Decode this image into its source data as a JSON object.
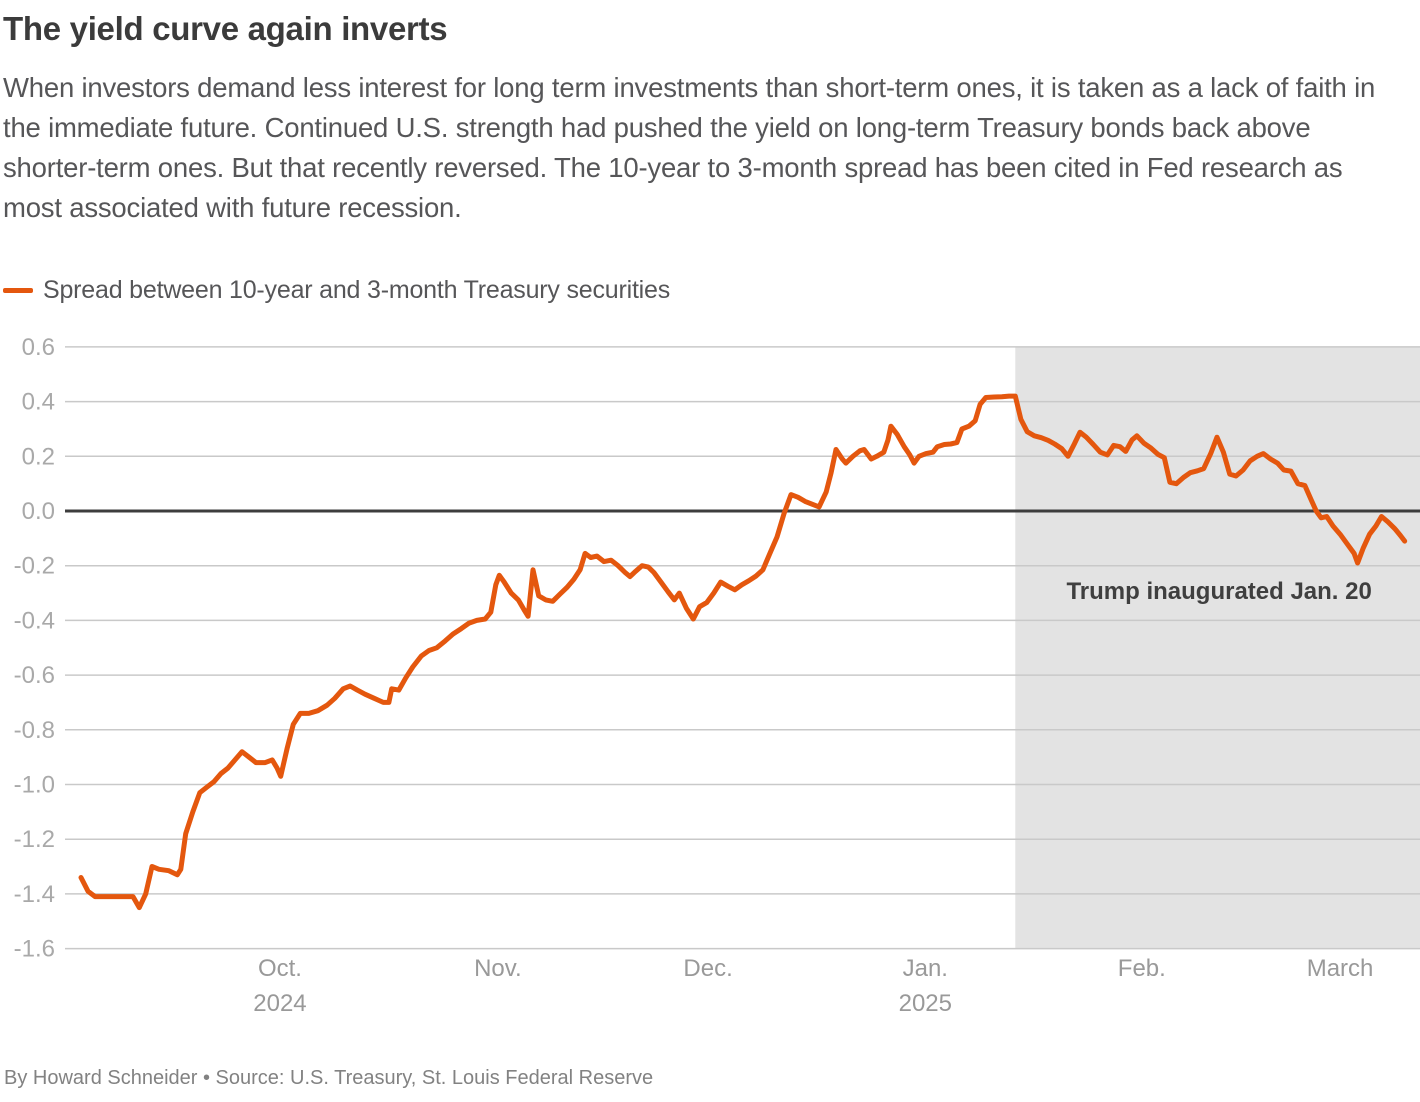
{
  "header": {
    "title": "The yield curve again inverts",
    "description": "When investors demand less interest for long term investments than short-term ones, it is taken as a lack of faith in the immediate future. Continued U.S. strength had pushed the yield on long-term Treasury bonds back above shorter-term ones. But that recently reversed. The 10-year to 3-month spread has been cited in Fed research as most associated with future recession."
  },
  "legend": {
    "label": "Spread between 10-year and 3-month Treasury securities",
    "swatch_color": "#e4570e"
  },
  "chart_data": {
    "type": "line",
    "title": "The yield curve again inverts",
    "x_axis": {
      "unit": "calendar days from chart start (~mid-Sept 2024), estimated from pixel positions",
      "ticks": [
        {
          "label": "Oct.",
          "sublabel": "2024",
          "day": 28.3
        },
        {
          "label": "Nov.",
          "sublabel": "",
          "day": 59.3
        },
        {
          "label": "Dec.",
          "sublabel": "",
          "day": 89.2
        },
        {
          "label": "Jan.",
          "sublabel": "2025",
          "day": 120.1
        },
        {
          "label": "Feb.",
          "sublabel": "",
          "day": 150.9
        },
        {
          "label": "March",
          "sublabel": "",
          "day": 179.1
        }
      ]
    },
    "y_axis": {
      "tick_labels": [
        "0.6",
        "0.4",
        "0.2",
        "0.0",
        "-0.2",
        "-0.4",
        "-0.6",
        "-0.8",
        "-1.0",
        "-1.2",
        "-1.4",
        "-1.6"
      ],
      "zero_line_emphasized": true,
      "gridline_color": "#c9c9c9",
      "zero_line_color": "#3d3d3d",
      "tick_label_color": "#a9a9a9"
    },
    "ylim": [
      -1.6,
      0.6
    ],
    "shaded_region": {
      "start_day": 132.9,
      "label": "Trump inaugurated Jan. 20",
      "color": "#e3e3e3",
      "label_color": "#3f3f3f"
    },
    "series": [
      {
        "name": "Spread between 10-year and 3-month Treasury securities",
        "color": "#e4570e",
        "points": [
          [
            0,
            -1.34
          ],
          [
            1,
            -1.39
          ],
          [
            2,
            -1.41
          ],
          [
            3,
            -1.41
          ],
          [
            4.6,
            -1.41
          ],
          [
            6,
            -1.41
          ],
          [
            7.4,
            -1.41
          ],
          [
            8.3,
            -1.45
          ],
          [
            9.2,
            -1.4
          ],
          [
            10.1,
            -1.3
          ],
          [
            11.1,
            -1.31
          ],
          [
            12.5,
            -1.315
          ],
          [
            13.7,
            -1.33
          ],
          [
            14.2,
            -1.31
          ],
          [
            14.9,
            -1.18
          ],
          [
            15.9,
            -1.1
          ],
          [
            16.9,
            -1.03
          ],
          [
            17.9,
            -1.01
          ],
          [
            18.9,
            -0.99
          ],
          [
            19.9,
            -0.96
          ],
          [
            20.9,
            -0.94
          ],
          [
            21.9,
            -0.91
          ],
          [
            22.9,
            -0.88
          ],
          [
            23.9,
            -0.9
          ],
          [
            24.9,
            -0.92
          ],
          [
            26.2,
            -0.92
          ],
          [
            27.2,
            -0.91
          ],
          [
            27.9,
            -0.94
          ],
          [
            28.4,
            -0.97
          ],
          [
            29.3,
            -0.87
          ],
          [
            30.2,
            -0.78
          ],
          [
            31.2,
            -0.74
          ],
          [
            32.4,
            -0.74
          ],
          [
            33.7,
            -0.73
          ],
          [
            35,
            -0.71
          ],
          [
            36.1,
            -0.685
          ],
          [
            37.3,
            -0.65
          ],
          [
            38.3,
            -0.64
          ],
          [
            39.3,
            -0.655
          ],
          [
            40.4,
            -0.67
          ],
          [
            41.7,
            -0.685
          ],
          [
            43,
            -0.7
          ],
          [
            43.8,
            -0.7
          ],
          [
            44.2,
            -0.65
          ],
          [
            45.2,
            -0.655
          ],
          [
            46.2,
            -0.61
          ],
          [
            47.2,
            -0.57
          ],
          [
            48.4,
            -0.53
          ],
          [
            49.5,
            -0.51
          ],
          [
            50.6,
            -0.5
          ],
          [
            51.8,
            -0.475
          ],
          [
            52.9,
            -0.45
          ],
          [
            54.1,
            -0.43
          ],
          [
            55.2,
            -0.41
          ],
          [
            56.3,
            -0.4
          ],
          [
            57.5,
            -0.395
          ],
          [
            58.3,
            -0.37
          ],
          [
            59,
            -0.27
          ],
          [
            59.5,
            -0.235
          ],
          [
            60.2,
            -0.26
          ],
          [
            61.2,
            -0.3
          ],
          [
            62.2,
            -0.325
          ],
          [
            63,
            -0.36
          ],
          [
            63.6,
            -0.385
          ],
          [
            64.3,
            -0.215
          ],
          [
            65.1,
            -0.31
          ],
          [
            66.1,
            -0.325
          ],
          [
            67.1,
            -0.33
          ],
          [
            68.1,
            -0.305
          ],
          [
            69.1,
            -0.28
          ],
          [
            70.1,
            -0.25
          ],
          [
            71,
            -0.215
          ],
          [
            71.7,
            -0.155
          ],
          [
            72.5,
            -0.17
          ],
          [
            73.4,
            -0.165
          ],
          [
            74.4,
            -0.185
          ],
          [
            75.4,
            -0.18
          ],
          [
            76.4,
            -0.2
          ],
          [
            77.4,
            -0.225
          ],
          [
            78.1,
            -0.24
          ],
          [
            78.9,
            -0.22
          ],
          [
            79.8,
            -0.2
          ],
          [
            80.7,
            -0.205
          ],
          [
            81.5,
            -0.225
          ],
          [
            82.5,
            -0.26
          ],
          [
            83.5,
            -0.295
          ],
          [
            84.4,
            -0.325
          ],
          [
            85.1,
            -0.3
          ],
          [
            86.1,
            -0.355
          ],
          [
            87.1,
            -0.395
          ],
          [
            88,
            -0.35
          ],
          [
            89,
            -0.335
          ],
          [
            90,
            -0.3
          ],
          [
            91,
            -0.26
          ],
          [
            92,
            -0.275
          ],
          [
            93,
            -0.288
          ],
          [
            94,
            -0.27
          ],
          [
            95,
            -0.255
          ],
          [
            96,
            -0.238
          ],
          [
            97,
            -0.215
          ],
          [
            98,
            -0.155
          ],
          [
            99,
            -0.095
          ],
          [
            100,
            -0.01
          ],
          [
            101,
            0.06
          ],
          [
            102,
            0.05
          ],
          [
            103,
            0.035
          ],
          [
            104,
            0.025
          ],
          [
            105,
            0.015
          ],
          [
            106,
            0.07
          ],
          [
            106.7,
            0.14
          ],
          [
            107.4,
            0.225
          ],
          [
            108.3,
            0.19
          ],
          [
            108.8,
            0.175
          ],
          [
            109.8,
            0.2
          ],
          [
            110.8,
            0.22
          ],
          [
            111.4,
            0.225
          ],
          [
            112.4,
            0.19
          ],
          [
            113.2,
            0.2
          ],
          [
            114.2,
            0.215
          ],
          [
            114.8,
            0.26
          ],
          [
            115.2,
            0.31
          ],
          [
            116.1,
            0.28
          ],
          [
            117.1,
            0.235
          ],
          [
            117.9,
            0.205
          ],
          [
            118.5,
            0.175
          ],
          [
            119.2,
            0.2
          ],
          [
            120.2,
            0.21
          ],
          [
            121.2,
            0.215
          ],
          [
            121.8,
            0.235
          ],
          [
            122.8,
            0.243
          ],
          [
            123.7,
            0.245
          ],
          [
            124.6,
            0.25
          ],
          [
            125.3,
            0.3
          ],
          [
            126.3,
            0.31
          ],
          [
            127.2,
            0.33
          ],
          [
            127.9,
            0.39
          ],
          [
            128.7,
            0.415
          ],
          [
            129.9,
            0.417
          ],
          [
            131,
            0.418
          ],
          [
            132,
            0.42
          ],
          [
            132.9,
            0.42
          ],
          [
            133.7,
            0.335
          ],
          [
            134.6,
            0.29
          ],
          [
            135.6,
            0.275
          ],
          [
            136.6,
            0.268
          ],
          [
            137.6,
            0.258
          ],
          [
            138.5,
            0.245
          ],
          [
            139.5,
            0.228
          ],
          [
            140.4,
            0.2
          ],
          [
            141.3,
            0.245
          ],
          [
            142.1,
            0.288
          ],
          [
            143,
            0.27
          ],
          [
            144,
            0.243
          ],
          [
            145,
            0.215
          ],
          [
            146,
            0.205
          ],
          [
            146.9,
            0.24
          ],
          [
            147.8,
            0.235
          ],
          [
            148.6,
            0.218
          ],
          [
            149.5,
            0.26
          ],
          [
            150.2,
            0.275
          ],
          [
            151.2,
            0.248
          ],
          [
            152.2,
            0.23
          ],
          [
            153.2,
            0.207
          ],
          [
            154.1,
            0.195
          ],
          [
            154.9,
            0.105
          ],
          [
            155.8,
            0.1
          ],
          [
            156.8,
            0.122
          ],
          [
            157.8,
            0.14
          ],
          [
            158.8,
            0.147
          ],
          [
            159.7,
            0.155
          ],
          [
            160.7,
            0.21
          ],
          [
            161.6,
            0.27
          ],
          [
            162.5,
            0.215
          ],
          [
            163.4,
            0.135
          ],
          [
            164.3,
            0.128
          ],
          [
            165.3,
            0.15
          ],
          [
            166.3,
            0.183
          ],
          [
            167.3,
            0.2
          ],
          [
            168.2,
            0.21
          ],
          [
            169.2,
            0.19
          ],
          [
            170.2,
            0.175
          ],
          [
            171.1,
            0.15
          ],
          [
            172.1,
            0.146
          ],
          [
            173.1,
            0.1
          ],
          [
            174.1,
            0.093
          ],
          [
            175,
            0.04
          ],
          [
            175.7,
            0
          ],
          [
            176.4,
            -0.025
          ],
          [
            177.2,
            -0.02
          ],
          [
            178.1,
            -0.055
          ],
          [
            179.1,
            -0.085
          ],
          [
            180.1,
            -0.12
          ],
          [
            181.1,
            -0.155
          ],
          [
            181.6,
            -0.19
          ],
          [
            182.4,
            -0.135
          ],
          [
            183.3,
            -0.085
          ],
          [
            184.2,
            -0.055
          ],
          [
            185,
            -0.02
          ],
          [
            185.9,
            -0.04
          ],
          [
            186.9,
            -0.065
          ],
          [
            187.7,
            -0.09
          ],
          [
            188.3,
            -0.11
          ]
        ]
      }
    ]
  },
  "footer": {
    "byline_source": "By Howard Schneider • Source: U.S. Treasury, St. Louis Federal Reserve"
  }
}
